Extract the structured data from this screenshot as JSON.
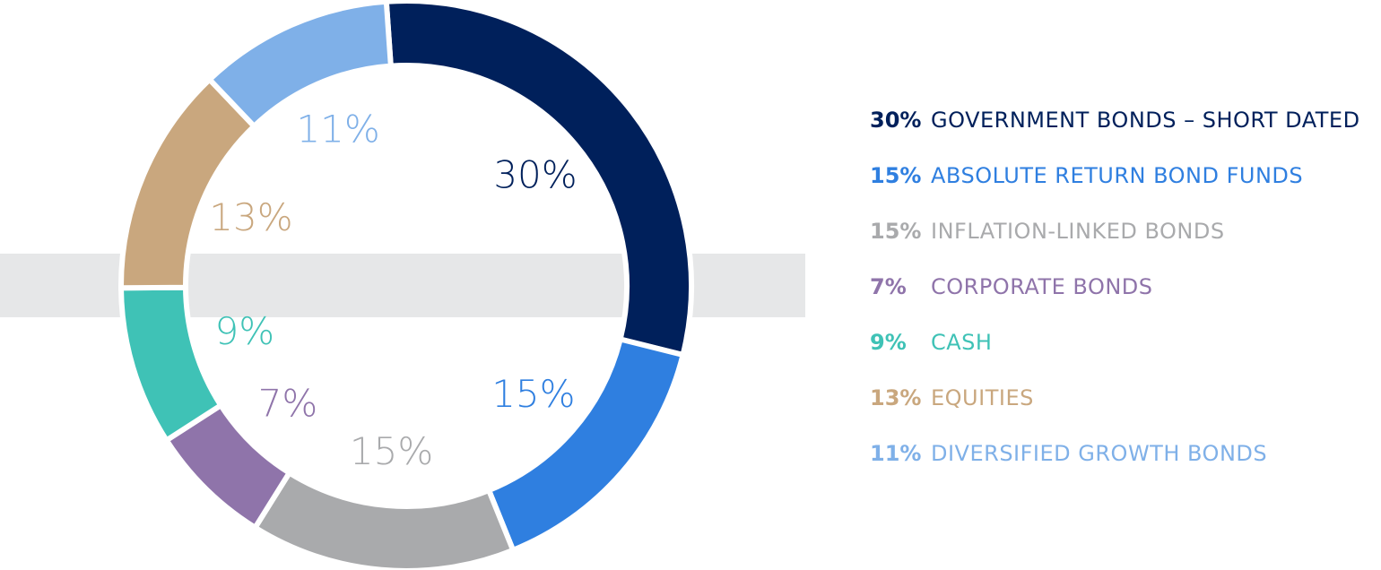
{
  "chart_data": {
    "type": "pie",
    "categories": [
      "GOVERNMENT BONDS – SHORT DATED",
      "ABSOLUTE RETURN BOND FUNDS",
      "INFLATION-LINKED BONDS",
      "CORPORATE BONDS",
      "CASH",
      "EQUITIES",
      "DIVERSIFIED GROWTH BONDS"
    ],
    "values": [
      30,
      15,
      15,
      7,
      9,
      13,
      11
    ],
    "value_labels": [
      "30%",
      "15%",
      "15%",
      "7%",
      "9%",
      "13%",
      "11%"
    ],
    "colors": [
      "#00205b",
      "#2f7fe0",
      "#a9aaac",
      "#8f74aa",
      "#3fc2b6",
      "#c9a77e",
      "#7fb0e8"
    ]
  }
}
